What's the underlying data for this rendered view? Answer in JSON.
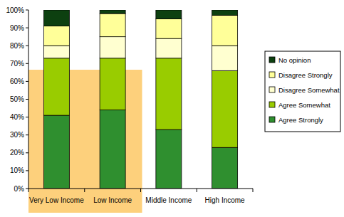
{
  "chart_data": {
    "type": "bar",
    "stacked": true,
    "legend": "right",
    "grid": false,
    "categories": [
      "Very Low Income",
      "Low Income",
      "Middle Income",
      "High Income"
    ],
    "series": [
      {
        "name": "Agree Strongly",
        "color": "#2f8f2f",
        "values": [
          41,
          44,
          33,
          23
        ]
      },
      {
        "name": "Agree Somewhat",
        "color": "#99cc00",
        "values": [
          32,
          29,
          40,
          43
        ]
      },
      {
        "name": "Disagree Somewhat",
        "color": "#ffffd0",
        "values": [
          7,
          12,
          11,
          14
        ]
      },
      {
        "name": "Disagree Strongly",
        "color": "#ffff99",
        "values": [
          11,
          13,
          11,
          17
        ]
      },
      {
        "name": "No opinion",
        "color": "#0d4010",
        "values": [
          9,
          2,
          5,
          3
        ]
      }
    ],
    "ylim": [
      0,
      100
    ],
    "yticks": [
      {
        "value": 0,
        "label": "0%"
      },
      {
        "value": 10,
        "label": "10%"
      },
      {
        "value": 20,
        "label": "20%"
      },
      {
        "value": 30,
        "label": "30%"
      },
      {
        "value": 40,
        "label": "40%"
      },
      {
        "value": 50,
        "label": "50%"
      },
      {
        "value": 60,
        "label": "60%"
      },
      {
        "value": 70,
        "label": "70%"
      },
      {
        "value": 80,
        "label": "80%"
      },
      {
        "value": 90,
        "label": "90%"
      },
      {
        "value": 100,
        "label": "100%"
      }
    ]
  }
}
